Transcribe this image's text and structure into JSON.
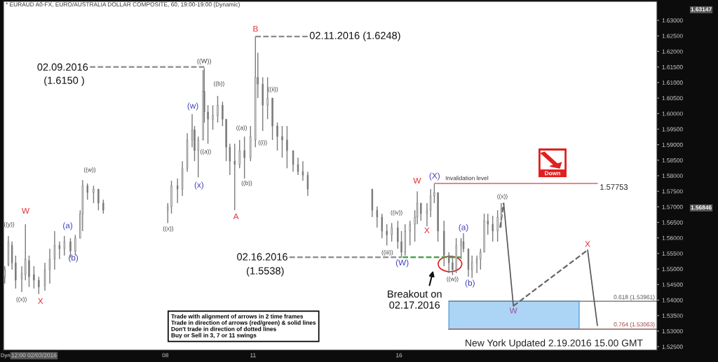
{
  "chart_data": {
    "type": "candlestick",
    "title": "* EURAUD A0-FX, EURO/AUSTRALIA DOLLAR COMPOSITE, 60, 19:00-19:00 (Dynamic)",
    "color": "#7a7a7a",
    "x": [
      "2016-02-02T12:00",
      "2016-02-02T15:00",
      "2016-02-02T18:00",
      "2016-02-02T21:00",
      "2016-02-03T02:00",
      "2016-02-03T05:00",
      "2016-02-03T08:00",
      "2016-02-03T12:00",
      "2016-02-03T16:00",
      "2016-02-03T21:00",
      "2016-02-04T01:00",
      "2016-02-04T05:00",
      "2016-02-04T09:00",
      "2016-02-04T13:00",
      "2016-02-04T18:00",
      "2016-02-04T22:00",
      "2016-02-05T02:00",
      "2016-02-05T04:00",
      "2016-02-05T08:00",
      "2016-02-05T13:00",
      "2016-02-05T17:00",
      "2016-02-05T21:00",
      "2016-02-08T02:00",
      "2016-02-08T05:00",
      "2016-02-08T10:00",
      "2016-02-08T14:00",
      "2016-02-08T18:00",
      "2016-02-08T22:00",
      "2016-02-09T00:00",
      "2016-02-09T03:00",
      "2016-02-09T07:00",
      "2016-02-09T08:00",
      "2016-02-09T11:00",
      "2016-02-09T15:00",
      "2016-02-09T19:00",
      "2016-02-09T23:00",
      "2016-02-10T02:00",
      "2016-02-10T05:00",
      "2016-02-10T09:00",
      "2016-02-10T13:00",
      "2016-02-10T17:00",
      "2016-02-10T22:00",
      "2016-02-11T02:00",
      "2016-02-11T04:00",
      "2016-02-11T08:00",
      "2016-02-11T12:00",
      "2016-02-11T16:00",
      "2016-02-11T20:00",
      "2016-02-12T00:00",
      "2016-02-12T04:00",
      "2016-02-12T09:00",
      "2016-02-12T13:00",
      "2016-02-12T17:00",
      "2016-02-12T21:00",
      "2016-02-15T02:00",
      "2016-02-15T06:00",
      "2016-02-15T10:00",
      "2016-02-15T14:00",
      "2016-02-15T18:00",
      "2016-02-15T23:00",
      "2016-02-16T02:00",
      "2016-02-16T05:00",
      "2016-02-16T09:00",
      "2016-02-16T13:00",
      "2016-02-16T15:00",
      "2016-02-16T18:00",
      "2016-02-16T23:00",
      "2016-02-17T02:00",
      "2016-02-17T05:00",
      "2016-02-17T08:00",
      "2016-02-17T13:00",
      "2016-02-17T17:00",
      "2016-02-17T20:00",
      "2016-02-17T23:00",
      "2016-02-18T03:00",
      "2016-02-18T05:00",
      "2016-02-18T09:00",
      "2016-02-18T12:00",
      "2016-02-18T16:00",
      "2016-02-18T19:00",
      "2016-02-18T22:00",
      "2016-02-19T01:00",
      "2016-02-19T05:00",
      "2016-02-19T09:00",
      "2016-02-19T12:00"
    ],
    "ohlc": [
      [
        1.5475,
        1.5509,
        1.5453,
        1.5498
      ],
      [
        1.5514,
        1.5606,
        1.5509,
        1.5588
      ],
      [
        1.5576,
        1.5588,
        1.5498,
        1.552
      ],
      [
        1.552,
        1.5543,
        1.5437,
        1.5464
      ],
      [
        1.5469,
        1.5509,
        1.5426,
        1.5487
      ],
      [
        1.5482,
        1.5644,
        1.5464,
        1.5532
      ],
      [
        1.5527,
        1.5543,
        1.5442,
        1.5475
      ],
      [
        1.5482,
        1.5509,
        1.5437,
        1.5464
      ],
      [
        1.5464,
        1.5475,
        1.5419,
        1.5442
      ],
      [
        1.5446,
        1.552,
        1.543,
        1.5498
      ],
      [
        1.5498,
        1.5565,
        1.5453,
        1.5532
      ],
      [
        1.5532,
        1.5622,
        1.5498,
        1.5576
      ],
      [
        1.5576,
        1.5588,
        1.5532,
        1.5565
      ],
      [
        1.5565,
        1.5606,
        1.5543,
        1.5588
      ],
      [
        1.5588,
        1.5599,
        1.5536,
        1.5558
      ],
      [
        1.5558,
        1.561,
        1.5543,
        1.5599
      ],
      [
        1.5599,
        1.5689,
        1.5599,
        1.5678
      ],
      [
        1.5678,
        1.5786,
        1.5622,
        1.5768
      ],
      [
        1.5768,
        1.5775,
        1.5723,
        1.5746
      ],
      [
        1.5746,
        1.5768,
        1.5712,
        1.5757
      ],
      [
        1.5757,
        1.5757,
        1.5689,
        1.5712
      ],
      [
        1.5712,
        1.5723,
        1.5678,
        1.5689
      ],
      [
        1.5689,
        1.5712,
        1.5648,
        1.5701
      ],
      [
        1.5701,
        1.5784,
        1.5678,
        1.5768
      ],
      [
        1.5768,
        1.5791,
        1.5712,
        1.5757
      ],
      [
        1.5757,
        1.5847,
        1.5735,
        1.5824
      ],
      [
        1.5824,
        1.5937,
        1.5813,
        1.5915
      ],
      [
        1.5915,
        1.5998,
        1.5892,
        1.5948
      ],
      [
        1.5948,
        1.596,
        1.5847,
        1.5881
      ],
      [
        1.5881,
        1.5926,
        1.5795,
        1.5915
      ],
      [
        1.5915,
        1.614,
        1.5915,
        1.6072
      ],
      [
        1.6072,
        1.6147,
        1.5971,
        1.6005
      ],
      [
        1.6005,
        1.6027,
        1.5903,
        1.5982
      ],
      [
        1.5982,
        1.6027,
        1.5948,
        1.5993
      ],
      [
        1.5993,
        1.6057,
        1.5971,
        1.6027
      ],
      [
        1.6027,
        1.6038,
        1.596,
        1.5982
      ],
      [
        1.5982,
        1.5982,
        1.5847,
        1.5892
      ],
      [
        1.5892,
        1.5903,
        1.5802,
        1.5847
      ],
      [
        1.5847,
        1.5903,
        1.5689,
        1.5836
      ],
      [
        1.5836,
        1.5915,
        1.5824,
        1.5881
      ],
      [
        1.5881,
        1.5926,
        1.5791,
        1.5858
      ],
      [
        1.5858,
        1.596,
        1.5847,
        1.5926
      ],
      [
        1.5915,
        1.6248,
        1.5892,
        1.6117
      ],
      [
        1.6117,
        1.6196,
        1.605,
        1.6095
      ],
      [
        1.6095,
        1.6117,
        1.5944,
        1.6027
      ],
      [
        1.6027,
        1.6117,
        1.5982,
        1.605
      ],
      [
        1.605,
        1.605,
        1.5915,
        1.596
      ],
      [
        1.596,
        1.5971,
        1.5881,
        1.5926
      ],
      [
        1.5926,
        1.596,
        1.5858,
        1.5915
      ],
      [
        1.5915,
        1.596,
        1.5824,
        1.5881
      ],
      [
        1.5881,
        1.5881,
        1.5813,
        1.5836
      ],
      [
        1.5836,
        1.5858,
        1.5802,
        1.5813
      ],
      [
        1.5813,
        1.5847,
        1.5784,
        1.5802
      ],
      [
        1.5802,
        1.5813,
        1.5735,
        1.5757
      ],
      [
        1.5757,
        1.5757,
        1.5667,
        1.5689
      ],
      [
        1.5689,
        1.5701,
        1.5633,
        1.5667
      ],
      [
        1.5667,
        1.5678,
        1.5599,
        1.5622
      ],
      [
        1.5622,
        1.5644,
        1.5576,
        1.561
      ],
      [
        1.561,
        1.5648,
        1.5588,
        1.5633
      ],
      [
        1.5633,
        1.5655,
        1.5565,
        1.5588
      ],
      [
        1.5588,
        1.5622,
        1.5538,
        1.5554
      ],
      [
        1.5554,
        1.5644,
        1.5543,
        1.5622
      ],
      [
        1.5622,
        1.5655,
        1.5576,
        1.5644
      ],
      [
        1.5644,
        1.5689,
        1.5588,
        1.5667
      ],
      [
        1.5667,
        1.575,
        1.5644,
        1.5712
      ],
      [
        1.5712,
        1.5712,
        1.5655,
        1.5678
      ],
      [
        1.5678,
        1.5712,
        1.5637,
        1.5689
      ],
      [
        1.5689,
        1.5757,
        1.5667,
        1.5735
      ],
      [
        1.5735,
        1.5773,
        1.5712,
        1.5746
      ],
      [
        1.5746,
        1.5746,
        1.5588,
        1.5622
      ],
      [
        1.5622,
        1.5655,
        1.5509,
        1.5543
      ],
      [
        1.5543,
        1.5554,
        1.5487,
        1.552
      ],
      [
        1.552,
        1.5543,
        1.548,
        1.5498
      ],
      [
        1.5498,
        1.5599,
        1.5487,
        1.5576
      ],
      [
        1.5576,
        1.5599,
        1.5532,
        1.5588
      ],
      [
        1.5588,
        1.5615,
        1.5554,
        1.5565
      ],
      [
        1.5565,
        1.5565,
        1.5475,
        1.5498
      ],
      [
        1.5498,
        1.5543,
        1.5471,
        1.552
      ],
      [
        1.552,
        1.5543,
        1.5487,
        1.5532
      ],
      [
        1.5532,
        1.5565,
        1.5498,
        1.5554
      ],
      [
        1.5554,
        1.5678,
        1.5554,
        1.5655
      ],
      [
        1.5655,
        1.5678,
        1.561,
        1.5644
      ],
      [
        1.5644,
        1.5671,
        1.5588,
        1.5622
      ],
      [
        1.5622,
        1.5689,
        1.5588,
        1.5667
      ],
      [
        1.5667,
        1.5712,
        1.5633,
        1.5694
      ]
    ],
    "series": [
      {
        "type": "bar",
        "x": [
          "2016-02-19T22:30"
        ],
        "base": [
          1.5306
        ],
        "values": [
          0.009
        ],
        "color": "#acd5f5"
      },
      {
        "type": "line",
        "x": [
          "2016-02-17T05:00",
          "2016-02-22T19:00"
        ],
        "values": [
          1.57753,
          1.57753
        ],
        "color": "#e06060",
        "line_style": "solid"
      },
      {
        "type": "line",
        "x": [
          "2016-02-05T10:00",
          "2016-02-09T08:00"
        ],
        "values": [
          1.615,
          1.615
        ],
        "color": "#8a8a8a",
        "line_style": "dashed"
      },
      {
        "type": "line",
        "x": [
          "2016-02-11T02:00",
          "2016-02-12T23:00"
        ],
        "values": [
          1.6248,
          1.6248
        ],
        "color": "#8a8a8a",
        "line_style": "dashed"
      },
      {
        "type": "line",
        "x": [
          "2016-02-12T06:00",
          "2016-02-16T02:00"
        ],
        "values": [
          1.5538,
          1.5538
        ],
        "color": "#8a8a8a",
        "line_style": "dashed"
      },
      {
        "type": "line",
        "x": [
          "2016-02-16T03:00",
          "2016-02-18T03:00"
        ],
        "values": [
          1.5538,
          1.5538
        ],
        "color": "#3a9a3a",
        "line_style": "dashed"
      },
      {
        "type": "line",
        "x": [
          "2016-02-17T17:00",
          "2016-02-24T20:00"
        ],
        "values": [
          1.53961,
          1.53961
        ],
        "color": "#808080",
        "line_style": "solid"
      },
      {
        "type": "line",
        "x": [
          "2016-02-17T17:00",
          "2016-02-24T20:00"
        ],
        "values": [
          1.53063,
          1.53063
        ],
        "color": "#a07070",
        "line_style": "solid"
      },
      {
        "type": "line",
        "x": [
          "2016-02-19T14:00",
          "2016-02-19T22:00",
          "2016-02-22T05:00",
          "2016-02-22T11:00",
          "2016-02-22T19:00"
        ],
        "values": [
          1.5712,
          1.5381,
          null,
          1.5561,
          1.5318
        ],
        "color": "#555555",
        "line_style": "solid"
      },
      {
        "type": "line",
        "x": [
          "2016-02-19T22:00",
          "2016-02-22T11:00"
        ],
        "values": [
          1.5381,
          1.5561
        ],
        "color": "#666666",
        "line_style": "dashed"
      },
      {
        "type": "line",
        "x": [
          "2016-02-19T11:00",
          "2016-02-19T14:00"
        ],
        "values": [
          1.5633,
          1.5712
        ],
        "color": "#666666",
        "line_style": "dashed"
      }
    ],
    "xlim": [
      "2016-02-02T11:00",
      "2016-02-24T20:00"
    ],
    "xticks": [
      {
        "value": "2016-02-03T12:00",
        "label": "12:00 02/03/2016"
      },
      {
        "value": "2016-02-08",
        "label": "08"
      },
      {
        "value": "2016-02-11",
        "label": "11"
      },
      {
        "value": "2016-02-16",
        "label": "16"
      }
    ],
    "ylim": [
      1.5239,
      1.6361
    ],
    "yticks": [
      {
        "value": 1.525,
        "label": "1.52500"
      },
      {
        "value": 1.53,
        "label": "1.53000"
      },
      {
        "value": 1.535,
        "label": "1.53500"
      },
      {
        "value": 1.54,
        "label": "1.54000"
      },
      {
        "value": 1.545,
        "label": "1.54500"
      },
      {
        "value": 1.55,
        "label": "1.55000"
      },
      {
        "value": 1.555,
        "label": "1.55500"
      },
      {
        "value": 1.56,
        "label": "1.56000"
      },
      {
        "value": 1.565,
        "label": "1.56500"
      },
      {
        "value": 1.57,
        "label": "1.57000"
      },
      {
        "value": 1.575,
        "label": "1.57500"
      },
      {
        "value": 1.58,
        "label": "1.58000"
      },
      {
        "value": 1.585,
        "label": "1.58500"
      },
      {
        "value": 1.59,
        "label": "1.59000"
      },
      {
        "value": 1.595,
        "label": "1.59500"
      },
      {
        "value": 1.6,
        "label": "1.60000"
      },
      {
        "value": 1.605,
        "label": "1.60500"
      },
      {
        "value": 1.61,
        "label": "1.61000"
      },
      {
        "value": 1.615,
        "label": "1.61500"
      },
      {
        "value": 1.62,
        "label": "1.62000"
      },
      {
        "value": 1.625,
        "label": "1.62500"
      },
      {
        "value": 1.63,
        "label": "1.63000"
      }
    ],
    "annotations": [
      "02.09.2016",
      "(1.6150 )",
      "02.11.2016 (1.6248)",
      "Invalidation level",
      "1.57753",
      "02.16.2016",
      "(1.5538)",
      "0.618 (1.53961)",
      "0.764 (1.53063)",
      "New York Updated 2.19.2016 15.00 GMT",
      "Trade with alignment of arrows in 2 time frames\nTrade in direction of arrows (red/green) & solid lines\nDon't trade in direction of dotted lines\nBuy or Sell in 3, 7 or 11 swings",
      "Down",
      "Dyn",
      "Breakout on\n02.17.2016",
      "1.63147",
      "1.56846",
      "((y))",
      "W",
      "((x))",
      "X",
      "(a)",
      "(b)",
      "((w))",
      "((x))",
      "(x)",
      "(w)",
      "((a))",
      "((W))",
      "((b))",
      "A",
      "((a))",
      "((b))",
      "B",
      "((i))",
      "((ii))",
      "((iv))",
      "((iii))",
      "(W)",
      "W",
      "X",
      "(X)",
      {
        "text": "((w))",
        "x": "2016-02-17T20:00",
        "y": 1.548
      },
      {
        "text": "(a)",
        "x": "2016-02-18T05:00",
        "y": 1.5615
      },
      "(b)",
      "((x))",
      {
        "text": "W",
        "x": "2016-02-19T22:00",
        "y": 1.5381
      },
      {
        "text": "X",
        "x": "2016-02-22T11:00",
        "y": 1.5561
      }
    ]
  }
}
